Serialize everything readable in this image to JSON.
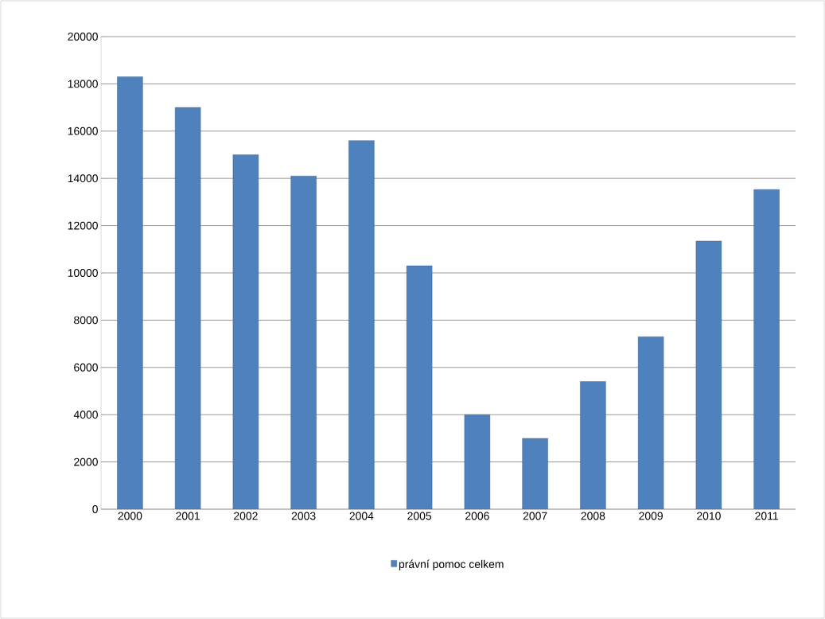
{
  "chart_data": {
    "type": "bar",
    "categories": [
      "2000",
      "2001",
      "2002",
      "2003",
      "2004",
      "2005",
      "2006",
      "2007",
      "2008",
      "2009",
      "2010",
      "2011"
    ],
    "series": [
      {
        "name": "právní pomoc celkem",
        "color": "#4f81bd",
        "values": [
          18300,
          17000,
          15000,
          14100,
          15600,
          10300,
          4000,
          3000,
          5400,
          7300,
          11350,
          13530
        ]
      }
    ],
    "ylim": [
      0,
      20000
    ],
    "yticks": [
      0,
      2000,
      4000,
      6000,
      8000,
      10000,
      12000,
      14000,
      16000,
      18000,
      20000
    ],
    "grid": "y",
    "legend": "bottom"
  }
}
